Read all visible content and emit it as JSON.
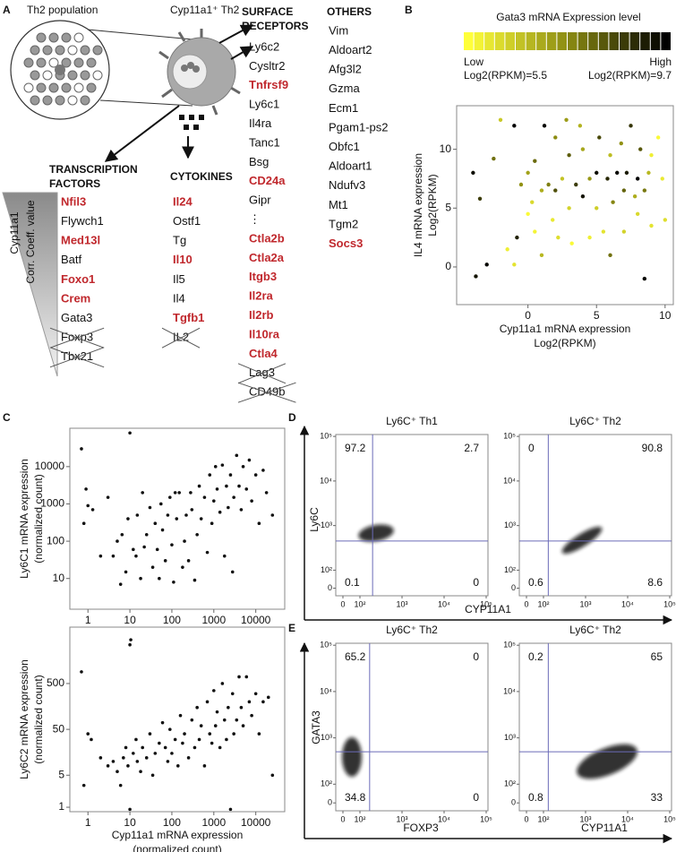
{
  "panel_labels": [
    "A",
    "B",
    "C",
    "D",
    "E"
  ],
  "panel_a": {
    "population_title": "Th2  population",
    "cell_title": "Cyp11a1⁺ Th2",
    "gradient_label": [
      "Cyp11a1",
      "Corr. Coeff. value"
    ],
    "groups": [
      {
        "title": [
          "TRANSCRIPTION",
          "FACTORS"
        ],
        "items": [
          {
            "text": "Nfil3",
            "highlight": true
          },
          {
            "text": "Flywch1"
          },
          {
            "text": "Med13l",
            "highlight": true
          },
          {
            "text": "Batf"
          },
          {
            "text": "Foxo1",
            "highlight": true
          },
          {
            "text": "Crem",
            "highlight": true
          },
          {
            "text": "Gata3"
          },
          {
            "text": "Foxp3",
            "excluded": true
          },
          {
            "text": "Tbx21",
            "excluded": true
          }
        ]
      },
      {
        "title": [
          "CYTOKINES"
        ],
        "items": [
          {
            "text": "Il24",
            "highlight": true
          },
          {
            "text": "Ostf1"
          },
          {
            "text": "Tg"
          },
          {
            "text": "Il10",
            "highlight": true
          },
          {
            "text": "Il5"
          },
          {
            "text": "Il4"
          },
          {
            "text": "Tgfb1",
            "highlight": true
          },
          {
            "text": "IL2",
            "excluded": true
          }
        ]
      },
      {
        "title": [
          "SURFACE",
          "RECEPTORS"
        ],
        "items": [
          {
            "text": "Ly6c2"
          },
          {
            "text": "Cysltr2"
          },
          {
            "text": "Tnfrsf9",
            "highlight": true
          },
          {
            "text": "Ly6c1"
          },
          {
            "text": "Il4ra"
          },
          {
            "text": "Tanc1"
          },
          {
            "text": "Bsg"
          },
          {
            "text": "CD24a",
            "highlight": true
          },
          {
            "text": "Gipr"
          },
          {
            "text": "⋮"
          },
          {
            "text": "Ctla2b",
            "highlight": true
          },
          {
            "text": "Ctla2a",
            "highlight": true
          },
          {
            "text": "Itgb3",
            "highlight": true
          },
          {
            "text": "Il2ra",
            "highlight": true
          },
          {
            "text": "Il2rb",
            "highlight": true
          },
          {
            "text": "Il10ra",
            "highlight": true
          },
          {
            "text": "Ctla4",
            "highlight": true
          },
          {
            "text": "Lag3",
            "excluded": true
          },
          {
            "text": "CD49b",
            "excluded": true
          }
        ]
      },
      {
        "title": [
          "OTHERS"
        ],
        "items": [
          {
            "text": "Vim"
          },
          {
            "text": "Aldoart2"
          },
          {
            "text": "Afg3l2"
          },
          {
            "text": "Gzma"
          },
          {
            "text": "Ecm1"
          },
          {
            "text": "Pgam1-ps2"
          },
          {
            "text": "Obfc1"
          },
          {
            "text": "Aldoart1"
          },
          {
            "text": "Ndufv3"
          },
          {
            "text": "Mt1"
          },
          {
            "text": "Tgm2"
          },
          {
            "text": "Socs3",
            "highlight": true
          }
        ]
      }
    ]
  },
  "panel_d": {
    "y_label": "Ly6C",
    "x_label": "CYP11A1"
  },
  "panel_e": {
    "y_label": "GATA3"
  },
  "chart_data": [
    {
      "type": "scatter",
      "colorbar": {
        "title": "Gata3 mRNA Expression level",
        "low": "Low",
        "high": "High",
        "low_label": "Log2(RPKM)=5.5",
        "high_label": "Log2(RPKM)=9.7",
        "range": [
          5.5,
          9.7
        ],
        "colors": [
          "#ffff3a",
          "#8c8c12",
          "#000000"
        ]
      },
      "x_label": [
        "Cyp11a1 mRNA expression",
        "Log2(RPKM)"
      ],
      "y_label": [
        "IL4 mRNA expression",
        "Log2(RPKM)"
      ],
      "xlim": [
        -5.2,
        10.6
      ],
      "ylim": [
        -3.2,
        13.7
      ],
      "xticks": [
        0,
        5,
        10
      ],
      "yticks": [
        0,
        5,
        10
      ],
      "x": [
        -4,
        -3.8,
        -3,
        -3.5,
        -2.5,
        -2,
        -1.5,
        -1,
        -1,
        -0.8,
        -0.5,
        0,
        0,
        0.3,
        0.5,
        0.5,
        1,
        1,
        1.2,
        1.5,
        1.8,
        2,
        2,
        2.2,
        2.5,
        2.8,
        3,
        3,
        3.2,
        3.5,
        3.8,
        4,
        4,
        4.5,
        4.5,
        5,
        5,
        5.2,
        5.5,
        5.8,
        6,
        6,
        6.2,
        6.5,
        6.8,
        7,
        7,
        7.2,
        7.5,
        7.8,
        8,
        8,
        8.2,
        8.5,
        8.5,
        8.8,
        9,
        9,
        9.5,
        9.8,
        10
      ],
      "values": [
        8,
        -0.8,
        0.2,
        5.8,
        9.2,
        12.5,
        1.5,
        0.2,
        12,
        2.5,
        7,
        4.5,
        8,
        5.5,
        3,
        9,
        1,
        6.5,
        12,
        7,
        4,
        6.5,
        11,
        2.5,
        7.5,
        12.5,
        5,
        9.5,
        2,
        7,
        12,
        6,
        10,
        2.5,
        7.5,
        8,
        5,
        11,
        3,
        7.5,
        9.5,
        1,
        5.5,
        8,
        10.5,
        6.5,
        3,
        8,
        12,
        6,
        7.5,
        4.5,
        10,
        -1,
        6.5,
        8,
        3.5,
        9.5,
        11,
        7.5,
        4
      ],
      "color_values": [
        9.5,
        9.4,
        9.6,
        8.8,
        8,
        6.5,
        5.8,
        6,
        9.7,
        9.2,
        7.5,
        5.6,
        7.2,
        6.2,
        5.7,
        8.1,
        6.8,
        7,
        9.6,
        7.8,
        5.9,
        8.5,
        7.6,
        6.1,
        6.6,
        7.3,
        6.3,
        8.3,
        5.6,
        8.8,
        6.9,
        9.4,
        7.1,
        5.8,
        7.4,
        9.5,
        6.4,
        8.6,
        6,
        9.1,
        6.7,
        8,
        7.7,
        9.6,
        7.5,
        8.2,
        6.3,
        9.3,
        8.9,
        7,
        9.7,
        6.2,
        8.4,
        9.6,
        7.9,
        6.8,
        6,
        5.8,
        5.6,
        5.9,
        6.1
      ]
    },
    {
      "type": "scatter",
      "log": true,
      "y_label": [
        "Ly6C1 mRNA expression",
        "(normalized count)"
      ],
      "xlim": [
        0.37,
        49000
      ],
      "ylim": [
        1.5,
        107000
      ],
      "xticks": [
        1,
        10,
        100,
        1000,
        10000
      ],
      "yticks": [
        10,
        100,
        1000,
        10000
      ],
      "x": [
        0.7,
        0.8,
        0.9,
        1,
        1.3,
        2,
        3,
        4,
        5,
        6,
        6.5,
        8,
        9,
        10,
        12,
        14,
        15,
        18,
        20,
        22,
        25,
        30,
        35,
        40,
        45,
        50,
        55,
        60,
        70,
        80,
        90,
        100,
        110,
        120,
        130,
        150,
        180,
        200,
        220,
        250,
        280,
        300,
        350,
        400,
        450,
        500,
        600,
        700,
        800,
        900,
        1000,
        1100,
        1200,
        1400,
        1600,
        1800,
        2000,
        2200,
        2500,
        2800,
        3000,
        3500,
        4000,
        4500,
        5000,
        6000,
        7000,
        8000,
        10000,
        12000,
        15000,
        18000,
        25000
      ],
      "values": [
        30000,
        300,
        2500,
        900,
        700,
        40,
        1500,
        40,
        100,
        7,
        150,
        15,
        400,
        80000,
        60,
        40,
        500,
        10,
        2000,
        70,
        150,
        800,
        20,
        300,
        60,
        10,
        1000,
        200,
        30,
        500,
        1500,
        80,
        8,
        2000,
        400,
        2000,
        20,
        100,
        500,
        30,
        2000,
        700,
        9,
        150,
        3000,
        400,
        1500,
        50,
        6000,
        300,
        1200,
        10000,
        2500,
        600,
        11000,
        40,
        3000,
        800,
        6000,
        15,
        1500,
        20000,
        3000,
        700,
        10000,
        2500,
        15000,
        1200,
        6000,
        300,
        8000,
        2000,
        500
      ]
    },
    {
      "type": "scatter",
      "log": true,
      "x_label": [
        "Cyp11a1 mRNA expression",
        "(normalized count)"
      ],
      "y_label": [
        "Ly6C2 mRNA expression",
        "(normalized count)"
      ],
      "xlim": [
        0.37,
        49000
      ],
      "ylim": [
        0.8,
        8500
      ],
      "xticks": [
        1,
        10,
        100,
        1000,
        10000
      ],
      "yticks": [
        1,
        5,
        50,
        500
      ],
      "x": [
        0.7,
        0.8,
        1,
        1.2,
        2,
        3,
        4,
        5,
        6,
        7,
        8,
        9,
        10,
        10.5,
        10,
        12,
        14,
        15,
        18,
        20,
        25,
        30,
        35,
        40,
        50,
        60,
        70,
        80,
        90,
        100,
        120,
        140,
        160,
        180,
        200,
        250,
        300,
        350,
        400,
        450,
        500,
        600,
        700,
        800,
        900,
        1000,
        1100,
        1200,
        1400,
        1600,
        1800,
        2000,
        2200,
        2500,
        2800,
        3000,
        3500,
        4000,
        4500,
        5000,
        6000,
        7000,
        8000,
        10000,
        12000,
        15000,
        20000,
        25000
      ],
      "values": [
        900,
        3,
        40,
        30,
        12,
        8,
        10,
        6,
        3,
        12,
        20,
        8,
        3500,
        4500,
        0.9,
        15,
        30,
        10,
        6,
        20,
        12,
        40,
        5,
        15,
        25,
        70,
        20,
        10,
        50,
        15,
        30,
        8,
        100,
        25,
        40,
        12,
        80,
        20,
        150,
        30,
        60,
        8,
        200,
        40,
        25,
        350,
        60,
        120,
        20,
        500,
        80,
        30,
        150,
        0.9,
        300,
        40,
        80,
        700,
        150,
        60,
        700,
        200,
        100,
        300,
        40,
        200,
        250,
        5
      ]
    },
    {
      "type": "flow",
      "title": "Ly6C⁺ Th1",
      "quadrants": [
        97.2,
        2.7,
        0.1,
        0
      ],
      "gates": [
        200,
        450
      ],
      "xticks": [
        0,
        {
          "value": 100,
          "label": "10²"
        },
        {
          "value": 1000,
          "label": "10³"
        },
        {
          "value": 10000,
          "label": "10⁴"
        },
        {
          "value": 100000,
          "label": "10⁵"
        }
      ],
      "yticks": [
        0,
        {
          "value": 100,
          "label": "10²"
        },
        {
          "value": 1000,
          "label": "10³"
        },
        {
          "value": 10000,
          "label": "10⁴"
        },
        {
          "value": 100000,
          "label": "10⁵"
        }
      ]
    },
    {
      "type": "flow",
      "title": "Ly6C⁺ Th2",
      "quadrants": [
        0,
        90.8,
        0.6,
        8.6
      ],
      "gates": [
        130,
        450
      ],
      "xticks": [
        0,
        {
          "value": 100,
          "label": "10²"
        },
        {
          "value": 1000,
          "label": "10³"
        },
        {
          "value": 10000,
          "label": "10⁴"
        },
        {
          "value": 100000,
          "label": "10⁵"
        }
      ],
      "yticks": [
        0,
        {
          "value": 100,
          "label": "10²"
        },
        {
          "value": 1000,
          "label": "10³"
        },
        {
          "value": 10000,
          "label": "10⁴"
        },
        {
          "value": 100000,
          "label": "10⁵"
        }
      ]
    },
    {
      "type": "flow",
      "title": "Ly6C⁺ Th2",
      "x_label": "FOXP3",
      "quadrants": [
        65.2,
        0,
        34.8,
        0
      ],
      "gates": [
        170,
        500
      ],
      "xticks": [
        0,
        {
          "value": 100,
          "label": "10²"
        },
        {
          "value": 1000,
          "label": "10³"
        },
        {
          "value": 10000,
          "label": "10⁴"
        },
        {
          "value": 100000,
          "label": "10⁵"
        }
      ],
      "yticks": [
        0,
        {
          "value": 100,
          "label": "10²"
        },
        {
          "value": 1000,
          "label": "10³"
        },
        {
          "value": 10000,
          "label": "10⁴"
        },
        {
          "value": 100000,
          "label": "10⁵"
        }
      ]
    },
    {
      "type": "flow",
      "title": "Ly6C⁺ Th2",
      "x_label": "CYP11A1",
      "quadrants": [
        0.2,
        65,
        0.8,
        33
      ],
      "gates": [
        130,
        500
      ],
      "xticks": [
        0,
        {
          "value": 100,
          "label": "10²"
        },
        {
          "value": 1000,
          "label": "10³"
        },
        {
          "value": 10000,
          "label": "10⁴"
        },
        {
          "value": 100000,
          "label": "10⁵"
        }
      ],
      "yticks": [
        0,
        {
          "value": 100,
          "label": "10²"
        },
        {
          "value": 1000,
          "label": "10³"
        },
        {
          "value": 10000,
          "label": "10⁴"
        },
        {
          "value": 100000,
          "label": "10⁵"
        }
      ]
    }
  ]
}
